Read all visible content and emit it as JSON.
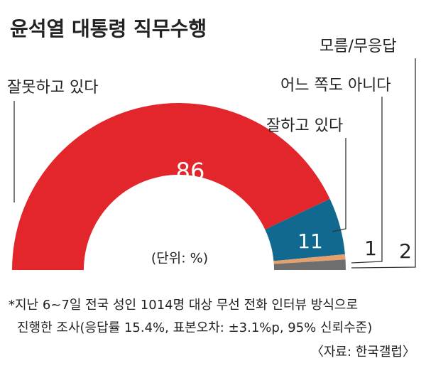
{
  "chart_data": {
    "type": "pie",
    "title": "윤석열 대통령 직무수행",
    "categories": [
      "잘못하고 있다",
      "잘하고 있다",
      "어느 쪽도 아니다",
      "모름/무응답"
    ],
    "values": [
      86,
      11,
      1,
      2
    ],
    "colors": [
      "#e3262b",
      "#11698f",
      "#e4a06d",
      "#6e6e6e"
    ],
    "unit_label": "(단위: %)",
    "notes": [
      "*지난 6~7일 전국 성인 1014명 대상 무선 전화 인터뷰 방식으로",
      "진행한 조사(응답률 15.4%, 표본오차: ±3.1%p, 95% 신뢰수준)"
    ],
    "source": "〈자료: 한국갤럽〉"
  }
}
